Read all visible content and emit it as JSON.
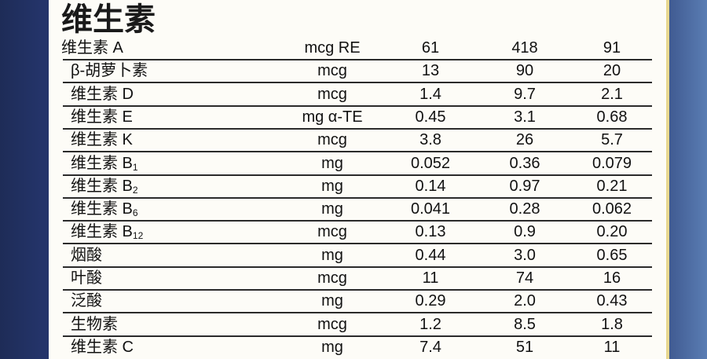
{
  "header": {
    "title": "维生素"
  },
  "table": {
    "rows": [
      {
        "name": "维生素 A",
        "unit": "mcg RE",
        "values": [
          "61",
          "418",
          "91"
        ]
      },
      {
        "name": "β-胡萝卜素",
        "unit": "mcg",
        "values": [
          "13",
          "90",
          "20"
        ]
      },
      {
        "name": "维生素 D",
        "unit": "mcg",
        "values": [
          "1.4",
          "9.7",
          "2.1"
        ]
      },
      {
        "name": "维生素 E",
        "unit": "mg α-TE",
        "values": [
          "0.45",
          "3.1",
          "0.68"
        ]
      },
      {
        "name": "维生素 K",
        "unit": "mcg",
        "values": [
          "3.8",
          "26",
          "5.7"
        ]
      },
      {
        "name": "维生素 B",
        "sub": "1",
        "unit": "mg",
        "values": [
          "0.052",
          "0.36",
          "0.079"
        ]
      },
      {
        "name": "维生素 B",
        "sub": "2",
        "unit": "mg",
        "values": [
          "0.14",
          "0.97",
          "0.21"
        ]
      },
      {
        "name": "维生素 B",
        "sub": "6",
        "unit": "mg",
        "values": [
          "0.041",
          "0.28",
          "0.062"
        ]
      },
      {
        "name": "维生素 B",
        "sub": "12",
        "unit": "mcg",
        "values": [
          "0.13",
          "0.9",
          "0.20"
        ]
      },
      {
        "name": "烟酸",
        "unit": "mg",
        "values": [
          "0.44",
          "3.0",
          "0.65"
        ]
      },
      {
        "name": "叶酸",
        "unit": "mcg",
        "values": [
          "11",
          "74",
          "16"
        ]
      },
      {
        "name": "泛酸",
        "unit": "mg",
        "values": [
          "0.29",
          "2.0",
          "0.43"
        ]
      },
      {
        "name": "生物素",
        "unit": "mcg",
        "values": [
          "1.2",
          "8.5",
          "1.8"
        ]
      },
      {
        "name": "维生素 C",
        "unit": "mg",
        "values": [
          "7.4",
          "51",
          "11"
        ]
      }
    ]
  }
}
